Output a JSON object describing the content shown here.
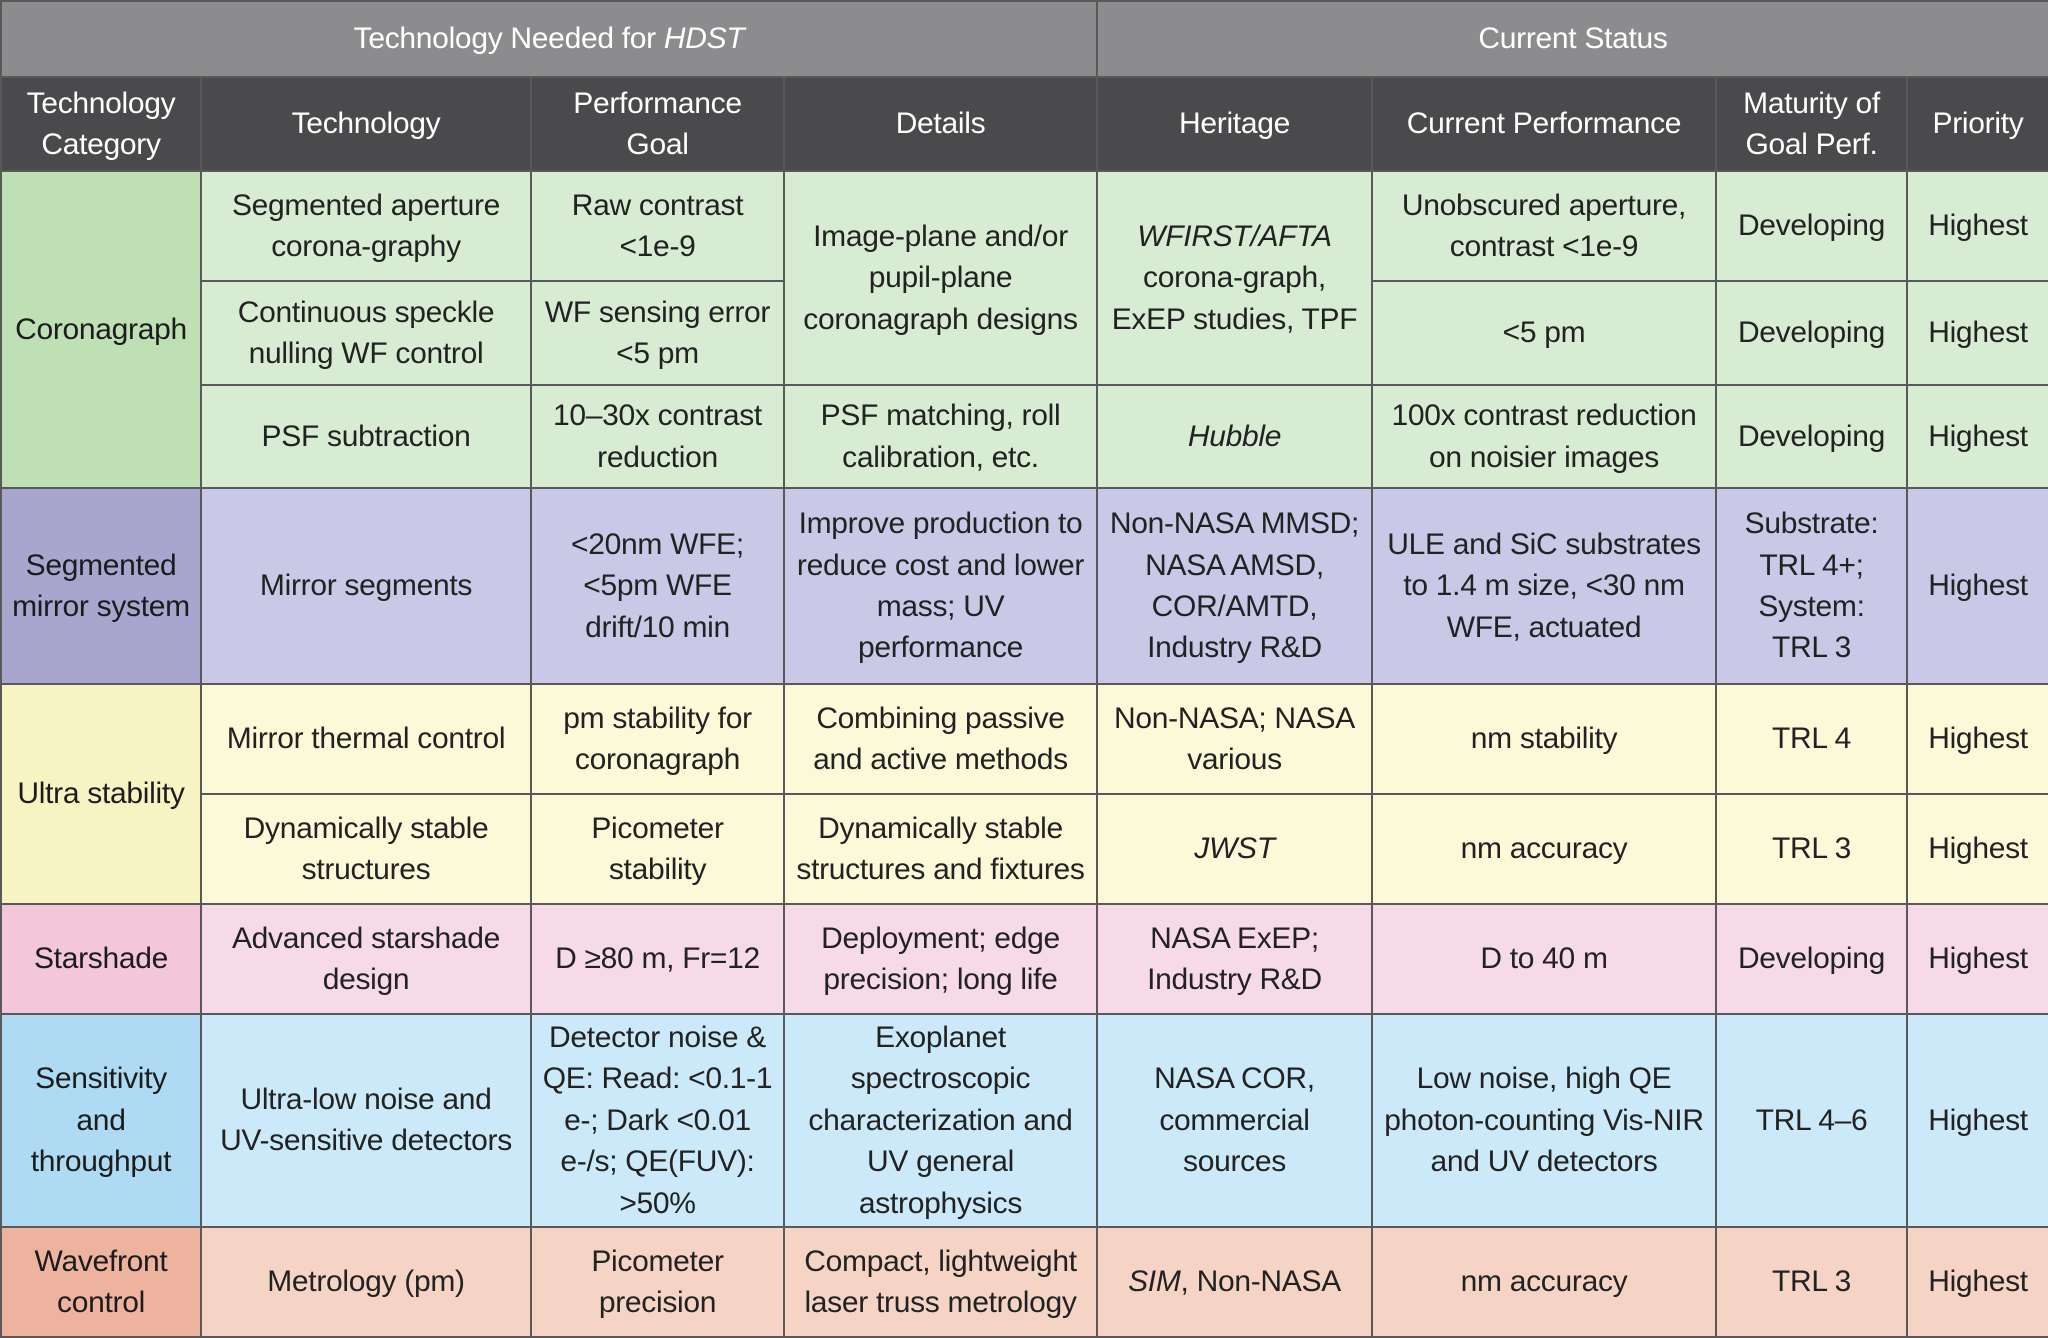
{
  "header": {
    "group_left_prefix": "Technology Needed for ",
    "group_left_emph": "HDST",
    "group_right": "Current Status"
  },
  "columns": {
    "category": "Technology Category",
    "technology": "Technology",
    "performance_goal": "Performance Goal",
    "details": "Details",
    "heritage": "Heritage",
    "current_performance": "Current Performance",
    "maturity": "Maturity of Goal Perf.",
    "priority": "Priority"
  },
  "colors": {
    "group_header_bg": "#8c8c8e",
    "column_header_bg": "#4a4a4c",
    "coronagraph": "#d7ecd2",
    "segmented_mirror": "#c9c8e7",
    "ultra_stability": "#fbf9d8",
    "starshade": "#f7dae7",
    "sensitivity": "#cbe9f8",
    "wavefront": "#f5d4c6"
  },
  "coronagraph": {
    "category": "Coronagraph",
    "details_shared": "Image-plane and/or pupil-plane coronagraph designs",
    "heritage_shared_emph": "WFIRST/AFTA",
    "heritage_shared_rest": " corona-graph, ExEP studies, TPF",
    "rows": [
      {
        "technology": "Segmented aperture corona-graphy",
        "goal": "Raw contrast <1e-9",
        "performance": "Unobscured aperture, contrast <1e-9",
        "maturity": "Developing",
        "priority": "Highest"
      },
      {
        "technology": "Continuous speckle nulling WF control",
        "goal": "WF sensing error <5 pm",
        "performance": "<5 pm",
        "maturity": "Developing",
        "priority": "Highest"
      },
      {
        "technology": "PSF subtraction",
        "goal": "10–30x contrast reduction",
        "details": "PSF matching, roll calibration, etc.",
        "heritage": "Hubble",
        "performance": "100x contrast reduction on noisier images",
        "maturity": "Developing",
        "priority": "Highest"
      }
    ]
  },
  "segmented_mirror": {
    "category": "Segmented mirror system",
    "technology": "Mirror segments",
    "goal": "<20nm WFE; <5pm WFE drift/10 min",
    "details": "Improve production to reduce cost and lower mass; UV performance",
    "heritage": "Non-NASA MMSD; NASA AMSD, COR/AMTD, Industry R&D",
    "performance": "ULE and SiC substrates to 1.4 m size, <30 nm WFE, actuated",
    "maturity": "Substrate: TRL 4+; System: TRL 3",
    "priority": "Highest"
  },
  "ultra_stability": {
    "category": "Ultra stability",
    "rows": [
      {
        "technology": "Mirror thermal control",
        "goal": "pm stability for coronagraph",
        "details": "Combining passive and active methods",
        "heritage": "Non-NASA; NASA various",
        "performance": "nm stability",
        "maturity": "TRL 4",
        "priority": "Highest"
      },
      {
        "technology": "Dynamically stable structures",
        "goal": "Picometer stability",
        "details": "Dynamically stable structures and fixtures",
        "heritage": "JWST",
        "performance": "nm accuracy",
        "maturity": "TRL 3",
        "priority": "Highest"
      }
    ]
  },
  "starshade": {
    "category": "Starshade",
    "technology": "Advanced starshade design",
    "goal": "D ≥80 m, Fr=12",
    "details": "Deployment; edge precision; long life",
    "heritage": "NASA ExEP; Industry R&D",
    "performance": "D to 40 m",
    "maturity": "Developing",
    "priority": "Highest"
  },
  "sensitivity": {
    "category": "Sensitivity and throughput",
    "technology": "Ultra-low noise and UV-sensitive detectors",
    "goal": "Detector noise & QE: Read: <0.1-1 e-; Dark <0.01 e-/s; QE(FUV): >50%",
    "details": "Exoplanet spectroscopic characterization and UV general astrophysics",
    "heritage": "NASA COR, commercial sources",
    "performance": "Low noise, high QE photon-counting Vis-NIR and UV detectors",
    "maturity": "TRL 4–6",
    "priority": "Highest"
  },
  "wavefront": {
    "category": "Wavefront control",
    "technology": "Metrology (pm)",
    "goal": "Picometer precision",
    "details": "Compact, lightweight laser truss metrology",
    "heritage_emph": "SIM",
    "heritage_rest": ", Non-NASA",
    "performance": "nm accuracy",
    "maturity": "TRL 3",
    "priority": "Highest"
  }
}
